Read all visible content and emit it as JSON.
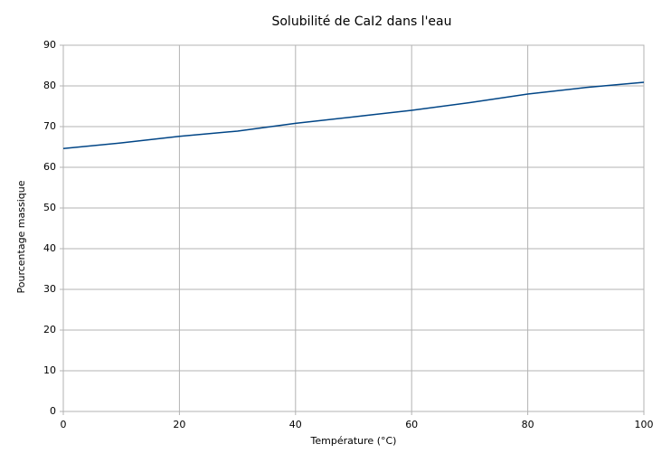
{
  "chart_data": {
    "type": "line",
    "title": "Solubilité de CaI2 dans l'eau",
    "xlabel": "Température  (°C)",
    "ylabel": "Pourcentage  massique",
    "x": [
      0,
      10,
      20,
      30,
      40,
      50,
      60,
      70,
      80,
      90,
      100
    ],
    "values": [
      64.6,
      66.0,
      67.6,
      68.9,
      70.8,
      72.4,
      74.0,
      75.9,
      78.0,
      79.6,
      80.9
    ],
    "color": "#004586",
    "xlim": [
      0,
      100
    ],
    "xticks": [
      0,
      20,
      40,
      60,
      80,
      100
    ],
    "ylim": [
      0,
      90
    ],
    "yticks": [
      0,
      10,
      20,
      30,
      40,
      50,
      60,
      70,
      80,
      90
    ],
    "grid": true
  }
}
